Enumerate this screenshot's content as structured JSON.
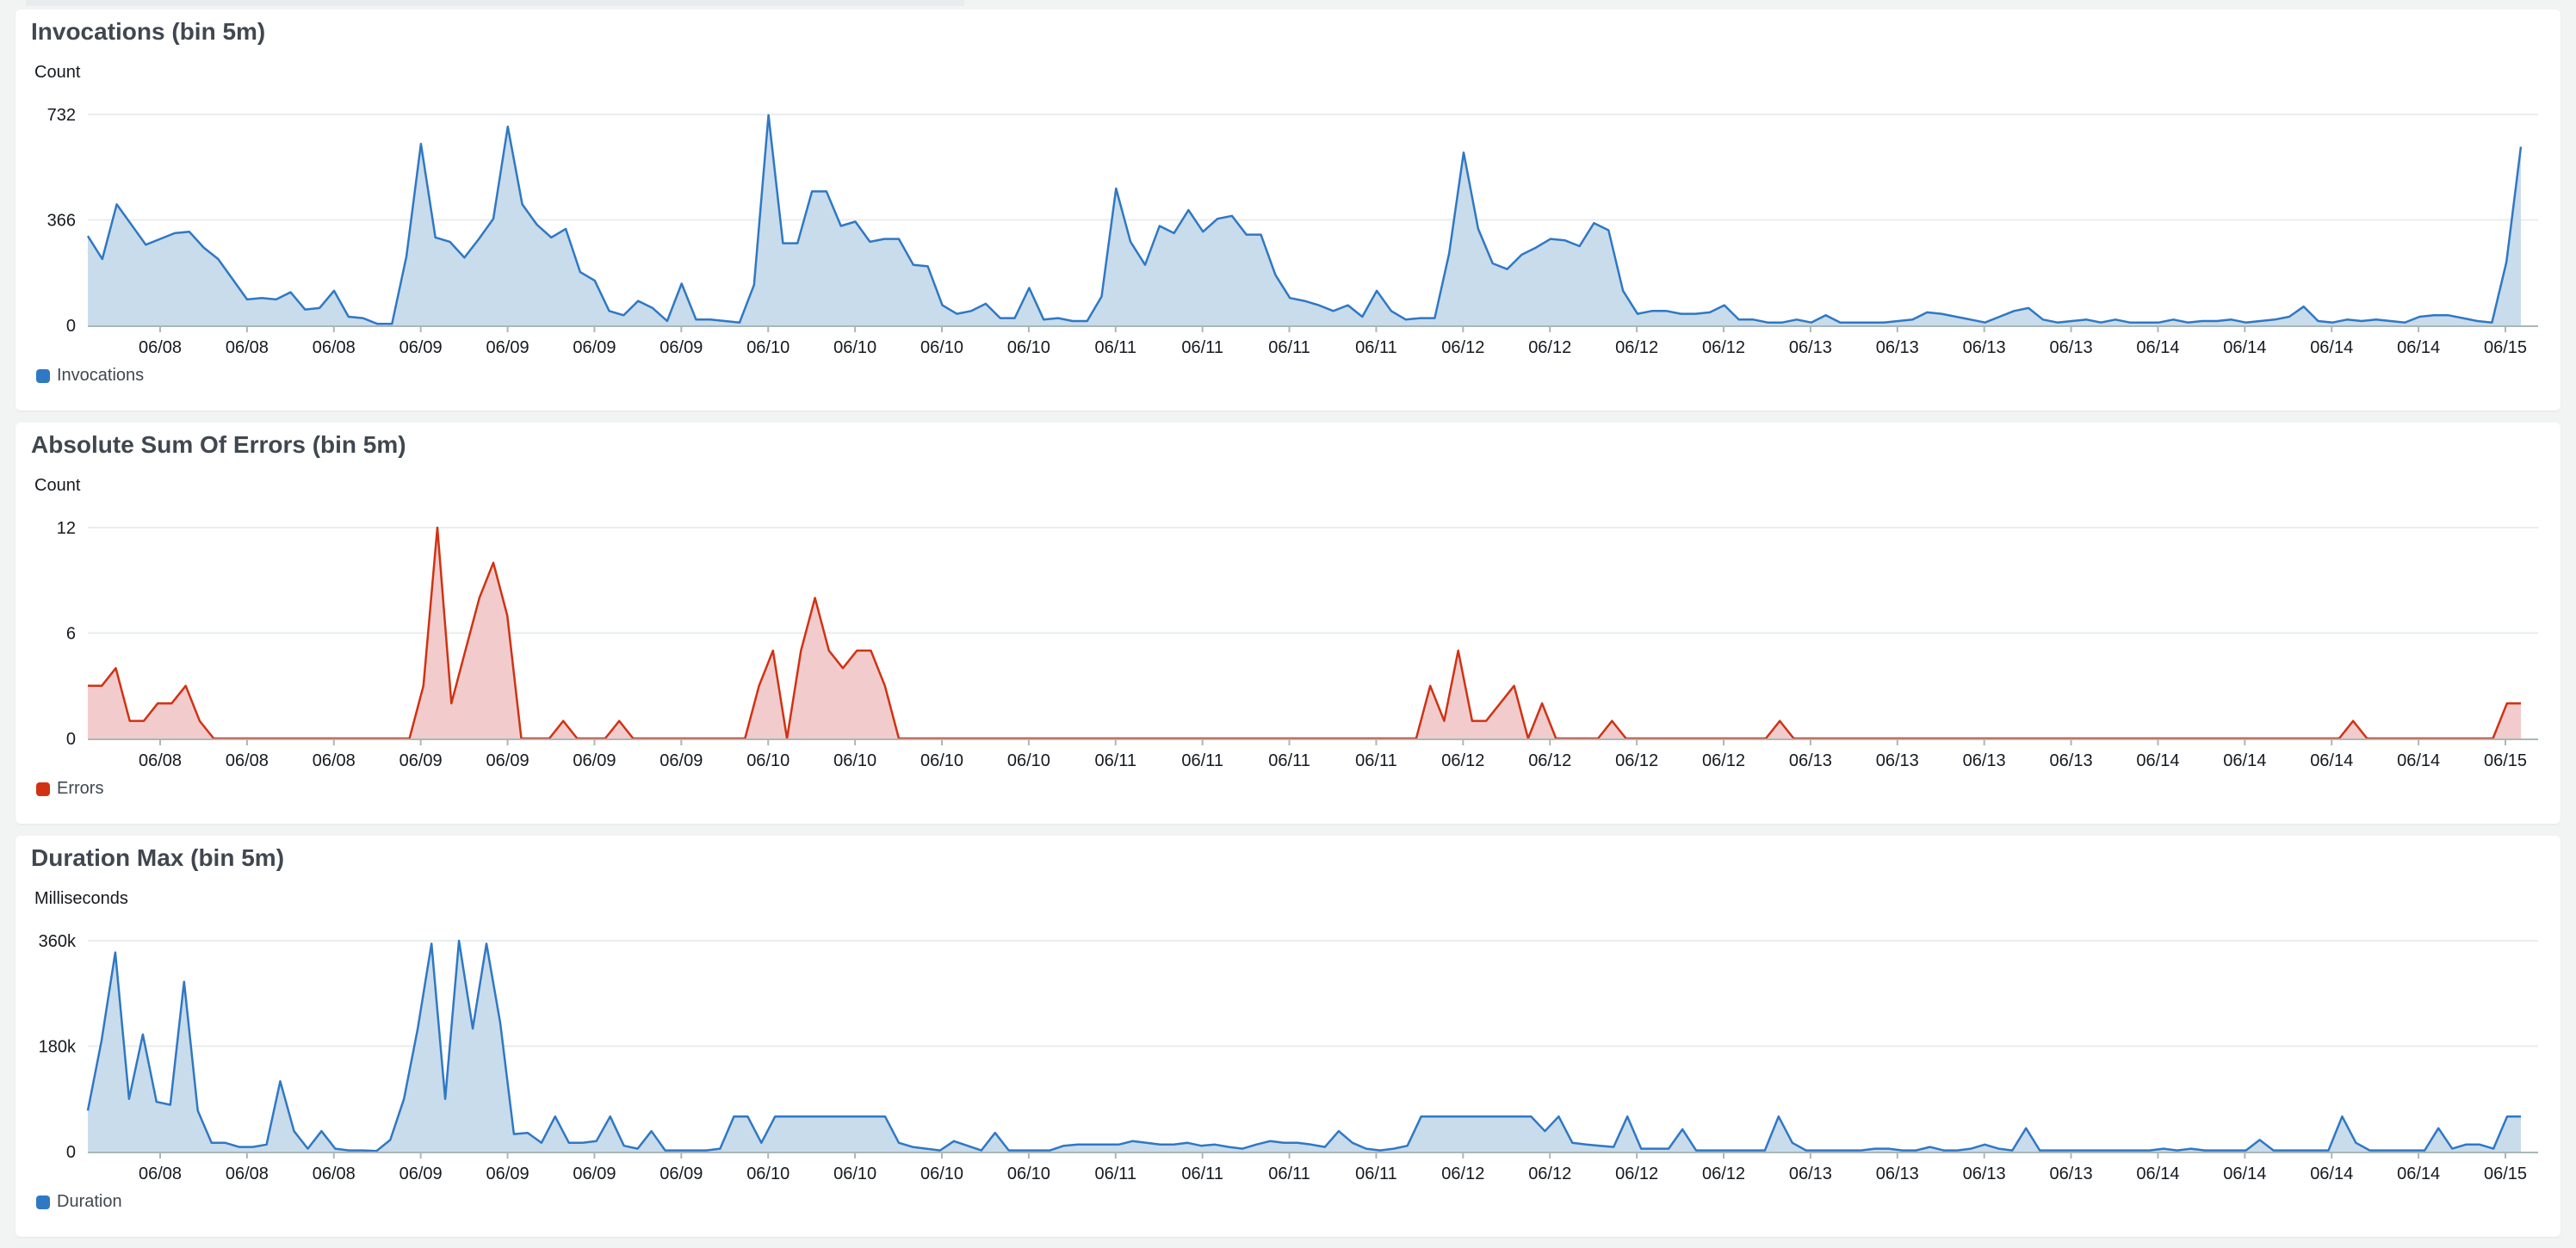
{
  "colors": {
    "blue_line": "#2f78c4",
    "blue_fill": "#c9dcec",
    "red_line": "#d13212",
    "red_fill": "#f2cccd"
  },
  "x_tick_labels": [
    "06/08",
    "06/08",
    "06/08",
    "06/09",
    "06/09",
    "06/09",
    "06/09",
    "06/10",
    "06/10",
    "06/10",
    "06/10",
    "06/11",
    "06/11",
    "06/11",
    "06/11",
    "06/12",
    "06/12",
    "06/12",
    "06/12",
    "06/13",
    "06/13",
    "06/13",
    "06/13",
    "06/14",
    "06/14",
    "06/14",
    "06/14",
    "06/15"
  ],
  "charts": [
    {
      "title": "Invocations (bin 5m)",
      "unit": "Count",
      "legend": "Invocations",
      "legend_icon": "square-swatch",
      "y_ticks": [
        "732",
        "366",
        "0"
      ],
      "chart_data": {
        "type": "area",
        "ylim": [
          0,
          732
        ],
        "series": [
          {
            "name": "Invocations",
            "color": "#2f78c4",
            "values": [
              310,
              230,
              420,
              350,
              280,
              300,
              320,
              325,
              270,
              230,
              160,
              90,
              95,
              90,
              115,
              55,
              60,
              120,
              30,
              25,
              5,
              5,
              240,
              630,
              305,
              290,
              235,
              300,
              370,
              690,
              420,
              350,
              305,
              335,
              185,
              155,
              50,
              35,
              85,
              60,
              15,
              145,
              20,
              20,
              15,
              10,
              140,
              730,
              285,
              285,
              465,
              465,
              345,
              360,
              290,
              300,
              300,
              210,
              205,
              70,
              40,
              50,
              75,
              25,
              25,
              130,
              20,
              25,
              15,
              15,
              100,
              475,
              290,
              210,
              345,
              320,
              400,
              325,
              370,
              380,
              315,
              315,
              175,
              95,
              85,
              70,
              50,
              70,
              30,
              120,
              50,
              20,
              25,
              25,
              250,
              600,
              335,
              215,
              195,
              245,
              270,
              300,
              295,
              275,
              355,
              330,
              120,
              40,
              50,
              50,
              40,
              40,
              45,
              70,
              20,
              20,
              10,
              10,
              20,
              10,
              35,
              10,
              10,
              10,
              10,
              15,
              20,
              45,
              40,
              30,
              20,
              10,
              30,
              50,
              60,
              20,
              10,
              15,
              20,
              10,
              20,
              10,
              10,
              10,
              20,
              10,
              15,
              15,
              20,
              10,
              15,
              20,
              30,
              65,
              15,
              10,
              20,
              15,
              20,
              15,
              10,
              30,
              35,
              35,
              25,
              15,
              10,
              220,
              620
            ]
          }
        ]
      }
    },
    {
      "title": "Absolute Sum Of Errors (bin 5m)",
      "unit": "Count",
      "legend": "Errors",
      "legend_icon": "square-swatch",
      "y_ticks": [
        "12",
        "6",
        "0"
      ],
      "chart_data": {
        "type": "area",
        "ylim": [
          0,
          12
        ],
        "series": [
          {
            "name": "Errors",
            "color": "#d13212",
            "values": [
              3,
              3,
              4,
              1,
              1,
              2,
              2,
              3,
              1,
              0,
              0,
              0,
              0,
              0,
              0,
              0,
              0,
              0,
              0,
              0,
              0,
              0,
              0,
              0,
              3,
              12,
              2,
              5,
              8,
              10,
              7,
              0,
              0,
              0,
              1,
              0,
              0,
              0,
              1,
              0,
              0,
              0,
              0,
              0,
              0,
              0,
              0,
              0,
              3,
              5,
              0,
              5,
              8,
              5,
              4,
              5,
              5,
              3,
              0,
              0,
              0,
              0,
              0,
              0,
              0,
              0,
              0,
              0,
              0,
              0,
              0,
              0,
              0,
              0,
              0,
              0,
              0,
              0,
              0,
              0,
              0,
              0,
              0,
              0,
              0,
              0,
              0,
              0,
              0,
              0,
              0,
              0,
              0,
              0,
              0,
              0,
              3,
              1,
              5,
              1,
              1,
              2,
              3,
              0,
              2,
              0,
              0,
              0,
              0,
              1,
              0,
              0,
              0,
              0,
              0,
              0,
              0,
              0,
              0,
              0,
              0,
              1,
              0,
              0,
              0,
              0,
              0,
              0,
              0,
              0,
              0,
              0,
              0,
              0,
              0,
              0,
              0,
              0,
              0,
              0,
              0,
              0,
              0,
              0,
              0,
              0,
              0,
              0,
              0,
              0,
              0,
              0,
              0,
              0,
              0,
              0,
              0,
              0,
              0,
              0,
              0,
              0,
              1,
              0,
              0,
              0,
              0,
              0,
              0,
              0,
              0,
              0,
              0,
              2,
              2
            ]
          }
        ]
      }
    },
    {
      "title": "Duration Max (bin 5m)",
      "unit": "Milliseconds",
      "legend": "Duration",
      "legend_icon": "square-swatch",
      "y_ticks": [
        "360k",
        "180k",
        "0"
      ],
      "chart_data": {
        "type": "area",
        "ylim": [
          0,
          360000
        ],
        "series": [
          {
            "name": "Duration",
            "color": "#2f78c4",
            "values": [
              70000,
              190000,
              340000,
              90000,
              200000,
              85000,
              80000,
              290000,
              70000,
              15000,
              15000,
              8000,
              8000,
              12000,
              120000,
              35000,
              5000,
              35000,
              5000,
              2000,
              2000,
              1000,
              20000,
              90000,
              210000,
              355000,
              90000,
              360000,
              210000,
              355000,
              220000,
              30000,
              32000,
              15000,
              60000,
              15000,
              15000,
              18000,
              60000,
              10000,
              5000,
              35000,
              2000,
              2000,
              2000,
              2000,
              5000,
              60000,
              60000,
              15000,
              60000,
              60000,
              60000,
              60000,
              60000,
              60000,
              60000,
              60000,
              60000,
              15000,
              8000,
              5000,
              2000,
              18000,
              10000,
              2000,
              32000,
              2000,
              2000,
              2000,
              2000,
              10000,
              12000,
              12000,
              12000,
              12000,
              18000,
              15000,
              12000,
              12000,
              15000,
              10000,
              12000,
              8000,
              5000,
              12000,
              18000,
              15000,
              15000,
              12000,
              8000,
              35000,
              15000,
              5000,
              2000,
              5000,
              10000,
              60000,
              60000,
              60000,
              60000,
              60000,
              60000,
              60000,
              60000,
              60000,
              35000,
              60000,
              15000,
              12000,
              10000,
              8000,
              60000,
              5000,
              5000,
              5000,
              38000,
              2000,
              2000,
              2000,
              2000,
              2000,
              2000,
              60000,
              15000,
              2000,
              2000,
              2000,
              2000,
              2000,
              5000,
              5000,
              2000,
              2000,
              8000,
              2000,
              2000,
              5000,
              12000,
              5000,
              2000,
              40000,
              2000,
              2000,
              2000,
              2000,
              2000,
              2000,
              2000,
              2000,
              2000,
              5000,
              2000,
              5000,
              2000,
              2000,
              2000,
              2000,
              20000,
              2000,
              2000,
              2000,
              2000,
              2000,
              60000,
              15000,
              2000,
              2000,
              2000,
              2000,
              2000,
              40000,
              5000,
              12000,
              12000,
              5000,
              60000,
              60000
            ]
          }
        ]
      }
    }
  ]
}
